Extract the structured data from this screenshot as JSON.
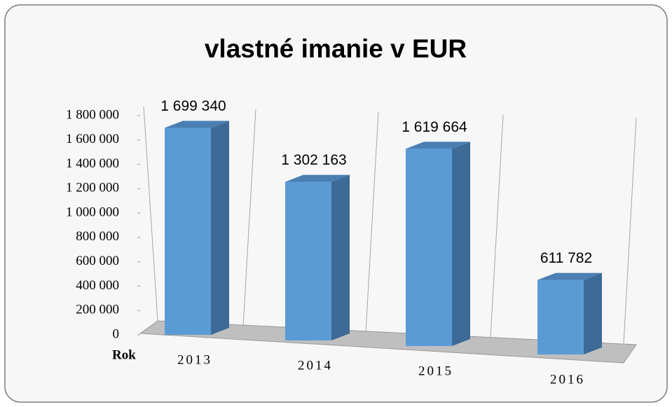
{
  "chart_data": {
    "type": "bar3d",
    "title": "vlastné imanie v  EUR",
    "x_label": "Rok",
    "categories": [
      "2013",
      "2014",
      "2015",
      "2016"
    ],
    "values": [
      1699340,
      1302163,
      1619664,
      611782
    ],
    "value_labels": [
      "1 699 340",
      "1 302 163",
      "1 619 664",
      "611 782"
    ],
    "color": "#5b9bd5",
    "ylim": [
      0,
      1800000
    ],
    "yticks": [
      0,
      {
        "value": 200000,
        "label": "200 000"
      },
      {
        "value": 400000,
        "label": "400 000"
      },
      {
        "value": 600000,
        "label": "600 000"
      },
      {
        "value": 800000,
        "label": "800 000"
      },
      {
        "value": 1000000,
        "label": "1 000 000"
      },
      {
        "value": 1200000,
        "label": "1 200 000"
      },
      {
        "value": 1400000,
        "label": "1 400 000"
      },
      {
        "value": 1600000,
        "label": "1 600 000"
      },
      {
        "value": 1800000,
        "label": "1 800 000"
      }
    ],
    "grid": true
  }
}
